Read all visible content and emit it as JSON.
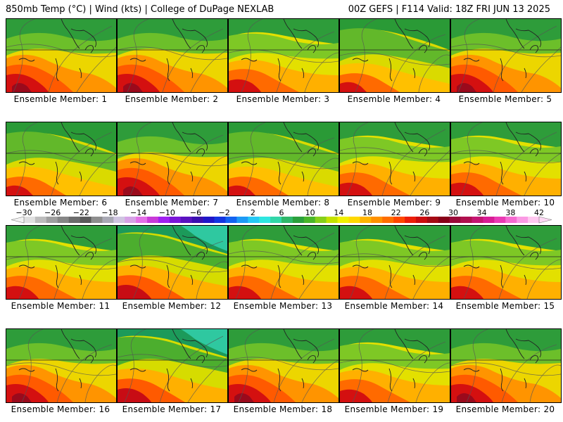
{
  "header": {
    "left": "850mb Temp (°C) | Wind (kts) | College of DuPage NEXLAB",
    "right": "00Z GEFS | F114 Valid: 18Z FRI JUN 13 2025"
  },
  "members": [
    {
      "label": "Ensemble Member: 1",
      "scheme": "hot"
    },
    {
      "label": "Ensemble Member: 2",
      "scheme": "hot"
    },
    {
      "label": "Ensemble Member: 3",
      "scheme": "warm"
    },
    {
      "label": "Ensemble Member: 4",
      "scheme": "mild"
    },
    {
      "label": "Ensemble Member: 5",
      "scheme": "hot"
    },
    {
      "label": "Ensemble Member: 6",
      "scheme": "mild"
    },
    {
      "label": "Ensemble Member: 7",
      "scheme": "hot"
    },
    {
      "label": "Ensemble Member: 8",
      "scheme": "mild"
    },
    {
      "label": "Ensemble Member: 9",
      "scheme": "warm"
    },
    {
      "label": "Ensemble Member: 10",
      "scheme": "warm"
    },
    {
      "label": "Ensemble Member: 11",
      "scheme": "warm"
    },
    {
      "label": "Ensemble Member: 12",
      "scheme": "cool"
    },
    {
      "label": "Ensemble Member: 13",
      "scheme": "warm"
    },
    {
      "label": "Ensemble Member: 14",
      "scheme": "warm"
    },
    {
      "label": "Ensemble Member: 15",
      "scheme": "warm"
    },
    {
      "label": "Ensemble Member: 16",
      "scheme": "hot"
    },
    {
      "label": "Ensemble Member: 17",
      "scheme": "cool"
    },
    {
      "label": "Ensemble Member: 18",
      "scheme": "hot"
    },
    {
      "label": "Ensemble Member: 19",
      "scheme": "warm"
    },
    {
      "label": "Ensemble Member: 20",
      "scheme": "hot"
    }
  ],
  "colorbar": {
    "tick_labels": [
      "−30",
      "−26",
      "−22",
      "−18",
      "−14",
      "−10",
      "−6",
      "−2",
      "2",
      "6",
      "10",
      "14",
      "18",
      "22",
      "26",
      "30",
      "34",
      "38",
      "42"
    ],
    "colors": [
      "#e0e0e0",
      "#bcbcbc",
      "#9f9f9f",
      "#868686",
      "#6c6c6c",
      "#5a5a5a",
      "#8e8e8e",
      "#a9a9b5",
      "#cfc5e1",
      "#d6a2e6",
      "#e36fe6",
      "#c83ad8",
      "#a020f0",
      "#7a15d8",
      "#5a12c0",
      "#3b0fb0",
      "#2016c8",
      "#1435e0",
      "#1463f0",
      "#1e9af5",
      "#26c8f5",
      "#2ee6e0",
      "#33d6a8",
      "#2fb86a",
      "#2ba03c",
      "#4ab62a",
      "#86cf1a",
      "#c4e100",
      "#f0f000",
      "#ffd800",
      "#ffb400",
      "#ff9100",
      "#ff6e00",
      "#ff4600",
      "#ec1e0a",
      "#cc0d10",
      "#a50a14",
      "#880018",
      "#9c0a3a",
      "#b0104e",
      "#c51572",
      "#d81c95",
      "#ea3ab4",
      "#f56ad0",
      "#fb9ae4",
      "#ffc8f0"
    ]
  }
}
